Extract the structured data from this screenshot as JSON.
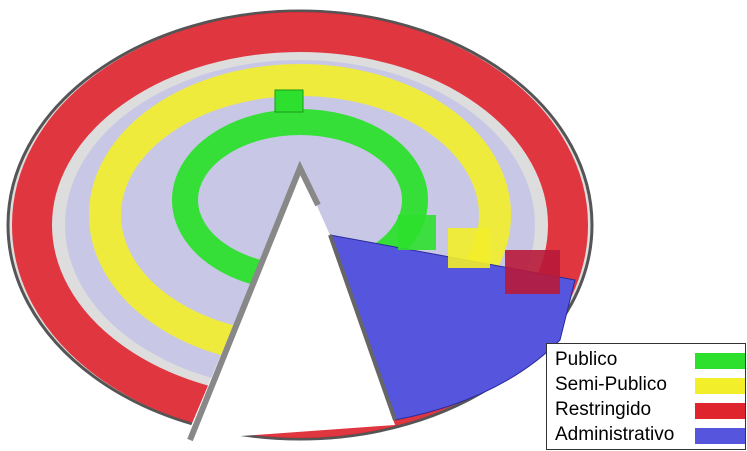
{
  "legend": {
    "items": [
      {
        "label": "Publico",
        "color": "#2ee02e"
      },
      {
        "label": "Semi-Publico",
        "color": "#f2ee2a"
      },
      {
        "label": "Restringido",
        "color": "#e0242e"
      },
      {
        "label": "Administrativo",
        "color": "#5555dd"
      }
    ]
  }
}
